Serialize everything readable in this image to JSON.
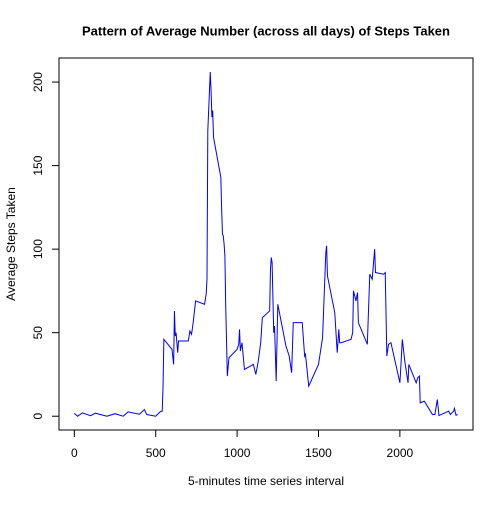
{
  "chart_data": {
    "type": "line",
    "title": "Pattern of Average Number (across all days) of Steps Taken",
    "xlabel": "5-minutes time series interval",
    "ylabel": "Average Steps Taken",
    "color": "#0000ff",
    "x": [
      0,
      20,
      50,
      100,
      130,
      200,
      250,
      300,
      330,
      400,
      430,
      445,
      500,
      530,
      540,
      545,
      550,
      600,
      610,
      615,
      620,
      625,
      635,
      640,
      700,
      710,
      720,
      730,
      745,
      800,
      810,
      815,
      820,
      835,
      840,
      845,
      850,
      855,
      900,
      905,
      910,
      915,
      920,
      925,
      930,
      935,
      940,
      950,
      1000,
      1010,
      1015,
      1020,
      1030,
      1045,
      1100,
      1115,
      1130,
      1145,
      1155,
      1200,
      1205,
      1210,
      1215,
      1225,
      1230,
      1240,
      1250,
      1300,
      1320,
      1335,
      1345,
      1400,
      1415,
      1420,
      1440,
      1500,
      1525,
      1545,
      1550,
      1555,
      1600,
      1615,
      1625,
      1630,
      1640,
      1700,
      1710,
      1715,
      1720,
      1730,
      1740,
      1745,
      1800,
      1815,
      1830,
      1845,
      1850,
      1900,
      1910,
      1920,
      1930,
      1945,
      2000,
      2005,
      2015,
      2030,
      2050,
      2055,
      2100,
      2110,
      2120,
      2125,
      2150,
      2200,
      2215,
      2230,
      2240,
      2300,
      2310,
      2330,
      2335,
      2345,
      2355
    ],
    "values": [
      1.7,
      0,
      2,
      0.3,
      1.8,
      0,
      1.5,
      0,
      2.6,
      1.2,
      4,
      1,
      0,
      2.9,
      3,
      18,
      46,
      40,
      31,
      63,
      48,
      50,
      38,
      45,
      45,
      51,
      49,
      56,
      69,
      67,
      73,
      82,
      171,
      206,
      195,
      179,
      183,
      167,
      143,
      124,
      109,
      108,
      103,
      96,
      66,
      45,
      24,
      35,
      40,
      43,
      52,
      39,
      44,
      28,
      31,
      25,
      33,
      44,
      59,
      63,
      88,
      95,
      92,
      50,
      54,
      21,
      67,
      42,
      36,
      26,
      56,
      56,
      36,
      37,
      18,
      31,
      47,
      98,
      102,
      84,
      62,
      38,
      52,
      44,
      44,
      46,
      50,
      75,
      73,
      69,
      74,
      56,
      43,
      85,
      82,
      100,
      86,
      85,
      86,
      36,
      43,
      44,
      20,
      28,
      46,
      33,
      20,
      31,
      20,
      23,
      24,
      8,
      9,
      1,
      1,
      10,
      0.4,
      3,
      1,
      3,
      4.7,
      0.5,
      1.1
    ],
    "xlim": [
      -94.2,
      2449.2
    ],
    "ylim": [
      -8.25,
      214.4
    ],
    "xticks": [
      0,
      500,
      1000,
      1500,
      2000
    ],
    "yticks": [
      0,
      50,
      100,
      150,
      200
    ]
  }
}
